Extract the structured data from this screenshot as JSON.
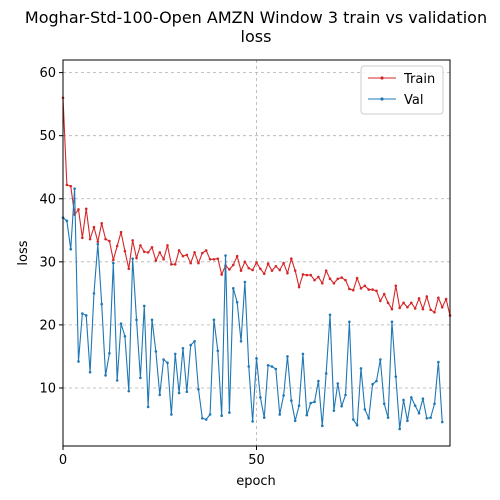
{
  "chart_data": {
    "type": "line",
    "title": "Moghar-Std-100-Open AMZN Window 3 train vs validation loss",
    "title_lines": [
      "Moghar-Std-100-Open AMZN Window 3 train vs validation",
      "loss"
    ],
    "xlabel": "epoch",
    "ylabel": "loss",
    "xlim": [
      0,
      100
    ],
    "ylim": [
      0.8,
      62.0
    ],
    "xticks": [
      0,
      50
    ],
    "yticks": [
      10,
      20,
      30,
      40,
      50,
      60
    ],
    "grid": true,
    "legend_position": "top-right",
    "series": [
      {
        "name": "Train",
        "color": "#d62728",
        "values": [
          56.0,
          42.2,
          42.0,
          37.5,
          38.3,
          33.8,
          38.4,
          33.6,
          35.5,
          33.2,
          36.1,
          33.6,
          33.3,
          30.3,
          32.5,
          34.7,
          31.7,
          28.9,
          33.4,
          30.6,
          32.6,
          31.6,
          31.5,
          32.3,
          30.2,
          31.5,
          30.4,
          32.6,
          29.6,
          29.6,
          31.8,
          30.9,
          31.1,
          29.8,
          31.5,
          29.8,
          31.4,
          31.8,
          30.4,
          30.4,
          30.5,
          28.0,
          29.4,
          28.8,
          29.5,
          30.9,
          28.6,
          30.0,
          29.0,
          28.7,
          29.9,
          28.9,
          28.1,
          29.7,
          28.6,
          29.3,
          28.7,
          29.8,
          28.2,
          30.5,
          28.6,
          26.0,
          28.0,
          27.9,
          27.9,
          27.1,
          27.6,
          26.6,
          28.6,
          27.3,
          26.6,
          27.3,
          27.5,
          27.1,
          25.7,
          25.5,
          27.4,
          25.8,
          26.2,
          25.6,
          25.6,
          25.4,
          23.8,
          24.9,
          23.5,
          22.5,
          26.2,
          22.7,
          23.5,
          22.8,
          23.5,
          22.6,
          24.2,
          22.5,
          24.5,
          22.4,
          22.0,
          24.3,
          22.8,
          24.1,
          21.5
        ],
        "values_count": 101
      },
      {
        "name": "Val",
        "color": "#1f77b4",
        "values": [
          37.0,
          36.5,
          32.0,
          41.6,
          14.2,
          21.8,
          21.5,
          12.5,
          25.0,
          32.8,
          23.3,
          12.0,
          15.5,
          29.8,
          11.2,
          20.2,
          18.2,
          9.5,
          30.5,
          20.8,
          11.6,
          23.0,
          7.0,
          20.8,
          15.8,
          8.9,
          14.5,
          14.0,
          5.8,
          15.4,
          9.2,
          16.3,
          9.4,
          16.8,
          17.4,
          9.8,
          5.2,
          5.0,
          5.8,
          20.8,
          15.9,
          5.6,
          31.0,
          6.1,
          25.8,
          23.6,
          17.4,
          26.8,
          13.4,
          4.7,
          14.7,
          8.5,
          5.3,
          13.6,
          13.4,
          13.0,
          5.8,
          8.8,
          15.0,
          8.0,
          4.8,
          7.2,
          15.4,
          5.7,
          7.6,
          7.8,
          11.1,
          4.0,
          12.3,
          21.6,
          6.4,
          10.7,
          7.1,
          8.9,
          20.5,
          5.0,
          4.1,
          13.1,
          6.6,
          5.2,
          10.6,
          11.1,
          14.5,
          7.5,
          5.3,
          20.5,
          11.8,
          3.5,
          8.1,
          4.8,
          8.5,
          7.2,
          6.0,
          8.3,
          5.2,
          5.3,
          7.5,
          14.1,
          4.6
        ]
      }
    ]
  }
}
